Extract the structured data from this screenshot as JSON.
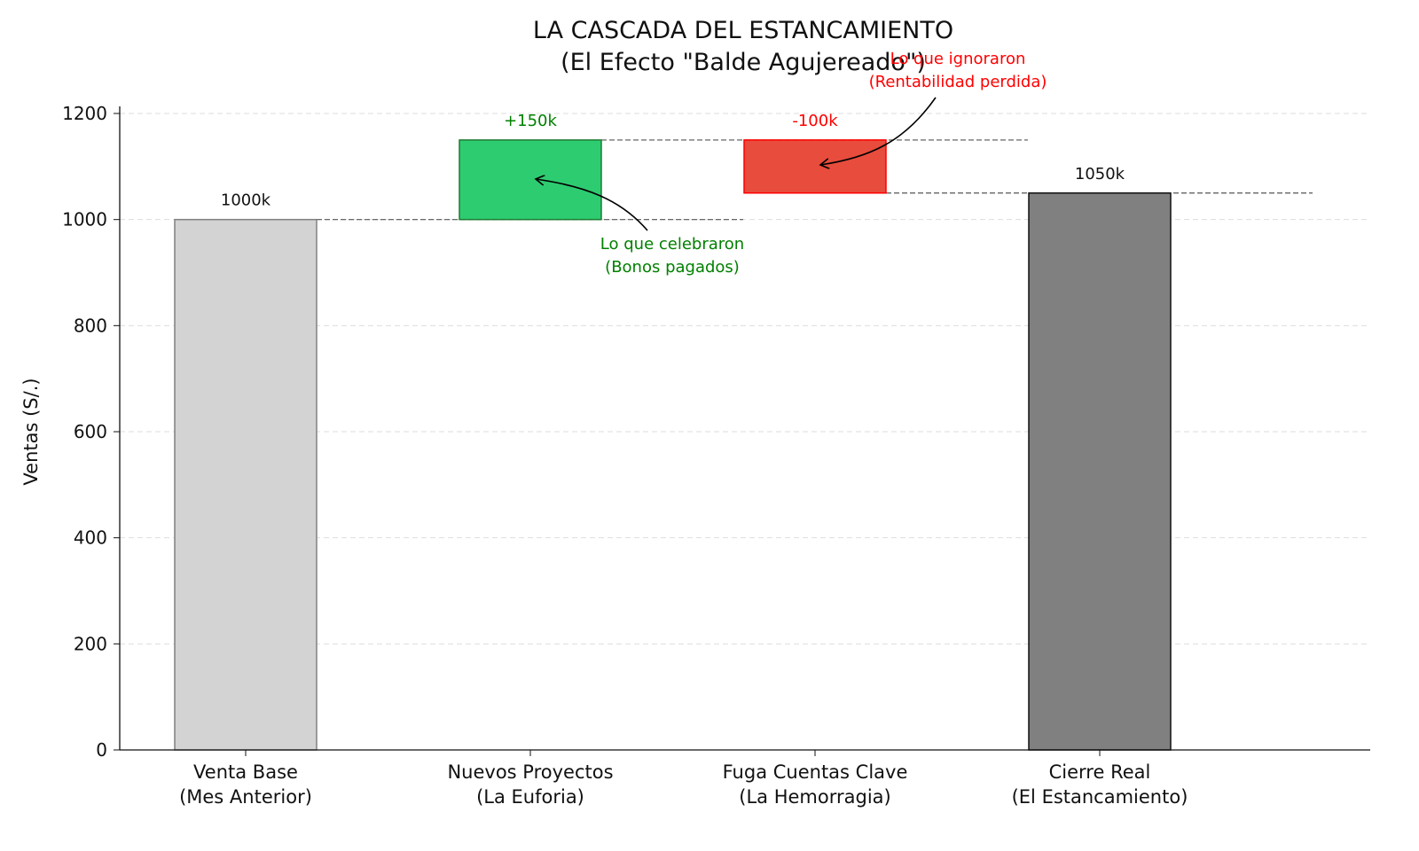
{
  "chart_data": {
    "type": "bar",
    "subtype": "waterfall",
    "title": "LA CASCADA DEL ESTANCAMIENTO",
    "subtitle": "(El Efecto \"Balde Agujereado\")",
    "xlabel": "",
    "ylabel": "Ventas (S/.)",
    "ylim": [
      0,
      1200
    ],
    "yticks": [
      0,
      200,
      400,
      600,
      800,
      1000,
      1200
    ],
    "grid": "horizontal dashed",
    "categories": [
      [
        "Venta Base",
        "(Mes Anterior)"
      ],
      [
        "Nuevos Proyectos",
        "(La Euforia)"
      ],
      [
        "Fuga Cuentas Clave",
        "(La Hemorragia)"
      ],
      [
        "Cierre Real",
        "(El Estancamiento)"
      ]
    ],
    "bars": [
      {
        "base": 0,
        "top": 1000,
        "label": "1000k",
        "color": "#d3d3d3",
        "edge": "#808080",
        "label_color": "#111111"
      },
      {
        "base": 1000,
        "top": 1150,
        "label": "+150k",
        "color": "#2ecc71",
        "edge": "#1e7d32",
        "label_color": "#008000"
      },
      {
        "base": 1050,
        "top": 1150,
        "label": "-100k",
        "color": "#e74c3c",
        "edge": "#ff0000",
        "label_color": "#ff0000"
      },
      {
        "base": 0,
        "top": 1050,
        "label": "1050k",
        "color": "#808080",
        "edge": "#111111",
        "label_color": "#111111"
      }
    ],
    "connectors": [
      1000,
      1150,
      1050
    ],
    "annotations": [
      {
        "lines": [
          "Lo que celebraron",
          "(Bonos pagados)"
        ],
        "color": "#008000",
        "target_bar": 1
      },
      {
        "lines": [
          "Lo que ignoraron",
          "(Rentabilidad perdida)"
        ],
        "color": "#ff0000",
        "target_bar": 2
      }
    ]
  }
}
